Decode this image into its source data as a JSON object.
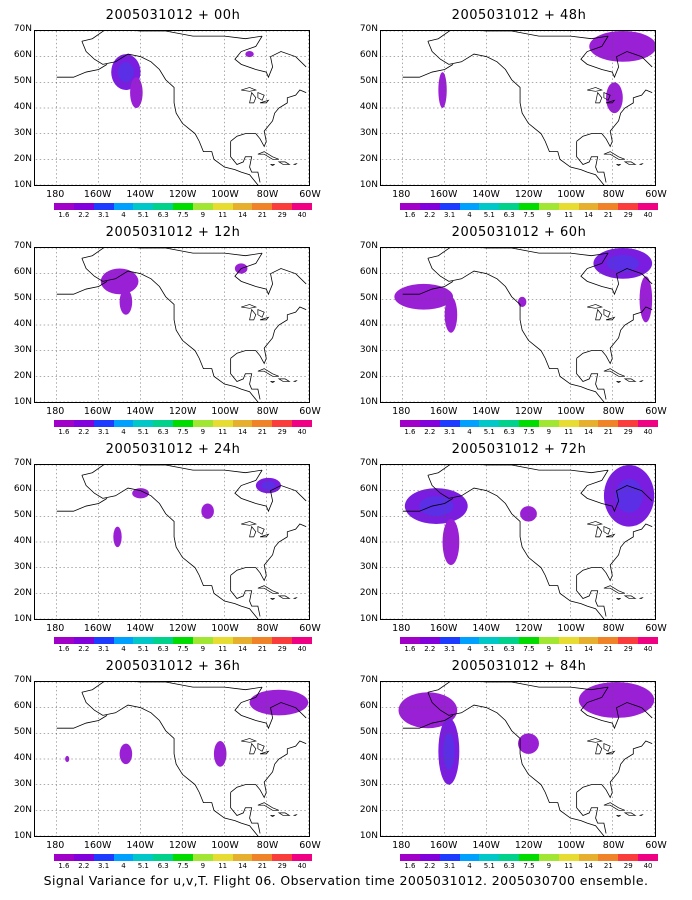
{
  "panels": [
    {
      "title": "2005031012 + 00h",
      "blobs": [
        {
          "x": -147,
          "y": 54,
          "rx": 7,
          "ry": 7,
          "level": 3
        },
        {
          "x": -142,
          "y": 46,
          "rx": 3,
          "ry": 6,
          "level": 2
        },
        {
          "x": -88,
          "y": 61,
          "rx": 2,
          "ry": 1.2,
          "level": 2
        }
      ]
    },
    {
      "title": "2005031012 + 48h",
      "blobs": [
        {
          "x": -161,
          "y": 47,
          "rx": 2,
          "ry": 7,
          "level": 2
        },
        {
          "x": -75,
          "y": 64,
          "rx": 16,
          "ry": 6,
          "level": 2
        },
        {
          "x": -79,
          "y": 44,
          "rx": 4,
          "ry": 6,
          "level": 2
        }
      ]
    },
    {
      "title": "2005031012 + 12h",
      "blobs": [
        {
          "x": -150,
          "y": 57,
          "rx": 9,
          "ry": 5,
          "level": 2
        },
        {
          "x": -147,
          "y": 49,
          "rx": 3,
          "ry": 5,
          "level": 2
        },
        {
          "x": -92,
          "y": 62,
          "rx": 3,
          "ry": 2,
          "level": 2
        }
      ]
    },
    {
      "title": "2005031012 + 60h",
      "blobs": [
        {
          "x": -170,
          "y": 51,
          "rx": 14,
          "ry": 5,
          "level": 2
        },
        {
          "x": -157,
          "y": 44,
          "rx": 3,
          "ry": 7,
          "level": 2
        },
        {
          "x": -123,
          "y": 49,
          "rx": 2,
          "ry": 2,
          "level": 2
        },
        {
          "x": -75,
          "y": 64,
          "rx": 14,
          "ry": 6,
          "level": 3
        },
        {
          "x": -64,
          "y": 50,
          "rx": 3,
          "ry": 9,
          "level": 2
        }
      ]
    },
    {
      "title": "2005031012 + 24h",
      "blobs": [
        {
          "x": -140,
          "y": 59,
          "rx": 4,
          "ry": 2,
          "level": 2
        },
        {
          "x": -151,
          "y": 42,
          "rx": 2,
          "ry": 4,
          "level": 2
        },
        {
          "x": -108,
          "y": 52,
          "rx": 3,
          "ry": 3,
          "level": 2
        },
        {
          "x": -79,
          "y": 62,
          "rx": 6,
          "ry": 3,
          "level": 3
        }
      ]
    },
    {
      "title": "2005031012 + 72h",
      "blobs": [
        {
          "x": -164,
          "y": 54,
          "rx": 15,
          "ry": 7,
          "level": 3
        },
        {
          "x": -157,
          "y": 40,
          "rx": 4,
          "ry": 9,
          "level": 2
        },
        {
          "x": -120,
          "y": 51,
          "rx": 4,
          "ry": 3,
          "level": 2
        },
        {
          "x": -72,
          "y": 58,
          "rx": 12,
          "ry": 12,
          "level": 3
        }
      ]
    },
    {
      "title": "2005031012 + 36h",
      "blobs": [
        {
          "x": -147,
          "y": 42,
          "rx": 3,
          "ry": 4,
          "level": 2
        },
        {
          "x": -175,
          "y": 40,
          "rx": 1,
          "ry": 1.2,
          "level": 2
        },
        {
          "x": -102,
          "y": 42,
          "rx": 3,
          "ry": 5,
          "level": 2
        },
        {
          "x": -74,
          "y": 62,
          "rx": 14,
          "ry": 5,
          "level": 2
        }
      ]
    },
    {
      "title": "2005031012 + 84h",
      "blobs": [
        {
          "x": -168,
          "y": 59,
          "rx": 14,
          "ry": 7,
          "level": 2
        },
        {
          "x": -158,
          "y": 43,
          "rx": 5,
          "ry": 13,
          "level": 3
        },
        {
          "x": -120,
          "y": 46,
          "rx": 5,
          "ry": 4,
          "level": 2
        },
        {
          "x": -78,
          "y": 63,
          "rx": 18,
          "ry": 7,
          "level": 2
        }
      ]
    }
  ],
  "lat_labels": [
    "70N",
    "60N",
    "50N",
    "40N",
    "30N",
    "20N",
    "10N"
  ],
  "lon_labels": [
    "180",
    "160W",
    "140W",
    "120W",
    "100W",
    "80W",
    "60W"
  ],
  "colorbar": {
    "colors": [
      "#a000c8",
      "#8200dc",
      "#1e3cff",
      "#00a0ff",
      "#00c8c8",
      "#00d28c",
      "#00dc00",
      "#a0e632",
      "#e6dc32",
      "#e6af2d",
      "#f08228",
      "#fa3c3c",
      "#f00082"
    ],
    "labels": [
      "1.6",
      "2.2",
      "3.1",
      "4",
      "5.1",
      "6.3",
      "7.5",
      "9",
      "11",
      "14",
      "21",
      "29",
      "40"
    ]
  },
  "caption": "Signal Variance for u,v,T. Flight 06. Observation time 2005031012. 2005030700 ensemble."
}
